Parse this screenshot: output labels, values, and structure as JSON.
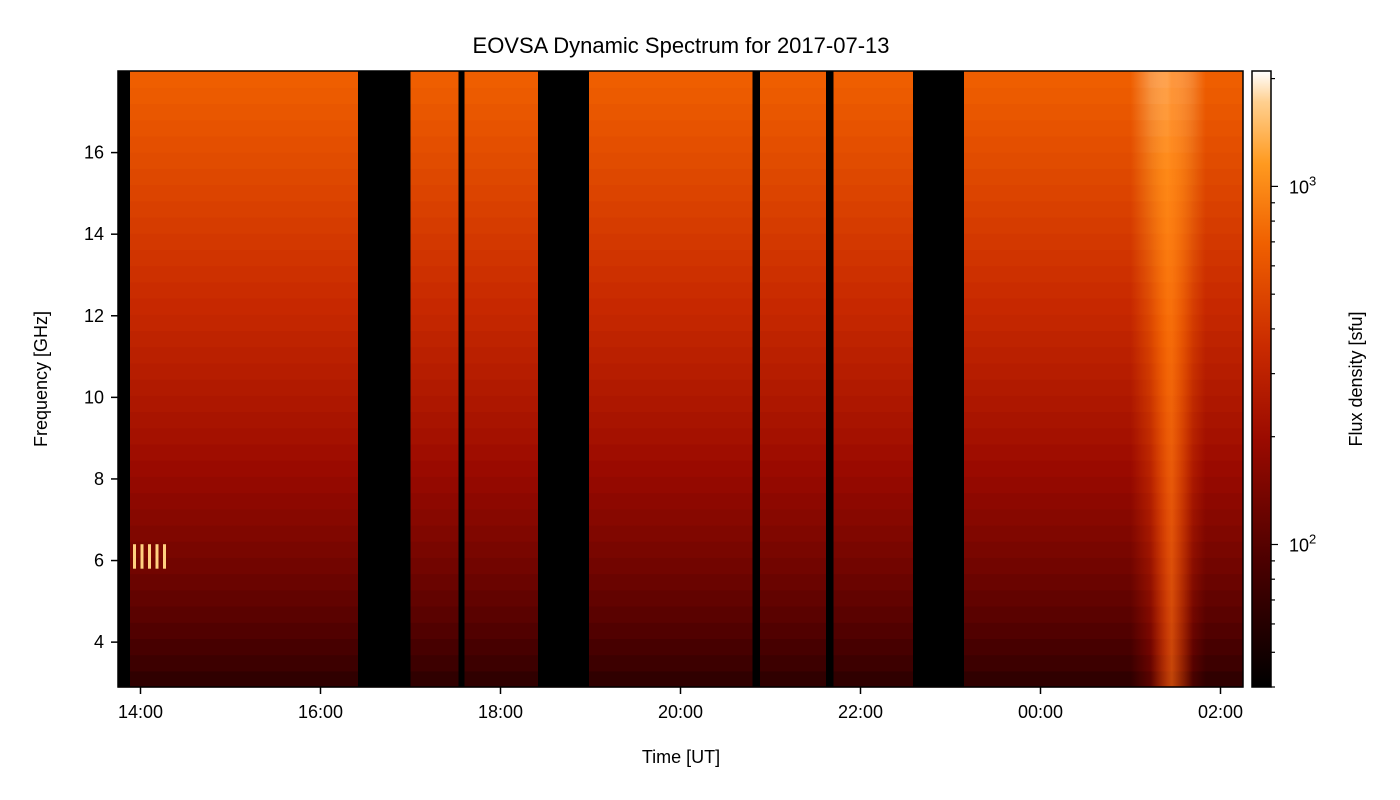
{
  "chart_data": {
    "type": "heatmap",
    "title": "EOVSA Dynamic Spectrum for 2017-07-13",
    "xlabel": "Time [UT]",
    "ylabel": "Frequency [GHz]",
    "x_start": "2017-07-13 13:45",
    "x_end": "2017-07-14 02:15",
    "xticks": [
      "14:00",
      "16:00",
      "18:00",
      "20:00",
      "22:00",
      "00:00",
      "02:00"
    ],
    "ylim": [
      2.9,
      18.0
    ],
    "yticks": [
      4,
      6,
      8,
      10,
      12,
      14,
      16
    ],
    "colorbar": {
      "label": "Flux density [sfu]",
      "scale": "log",
      "range": [
        40,
        2100
      ],
      "ticks": [
        "10^2",
        "10^3"
      ],
      "colormap": "gist_heat"
    },
    "data_gaps_ut": [
      [
        "13:45",
        "13:53"
      ],
      [
        "16:25",
        "17:00"
      ],
      [
        "17:32",
        "17:36"
      ],
      [
        "18:25",
        "18:59"
      ],
      [
        "20:48",
        "20:53"
      ],
      [
        "21:37",
        "21:42"
      ],
      [
        "22:35",
        "23:09"
      ]
    ],
    "bright_features": [
      {
        "time": "01:20–01:35",
        "freq_ghz": "3–18",
        "note": "broadband brightening"
      },
      {
        "time": "13:55–14:15",
        "freq_ghz": "~6",
        "note": "spike band"
      }
    ]
  }
}
